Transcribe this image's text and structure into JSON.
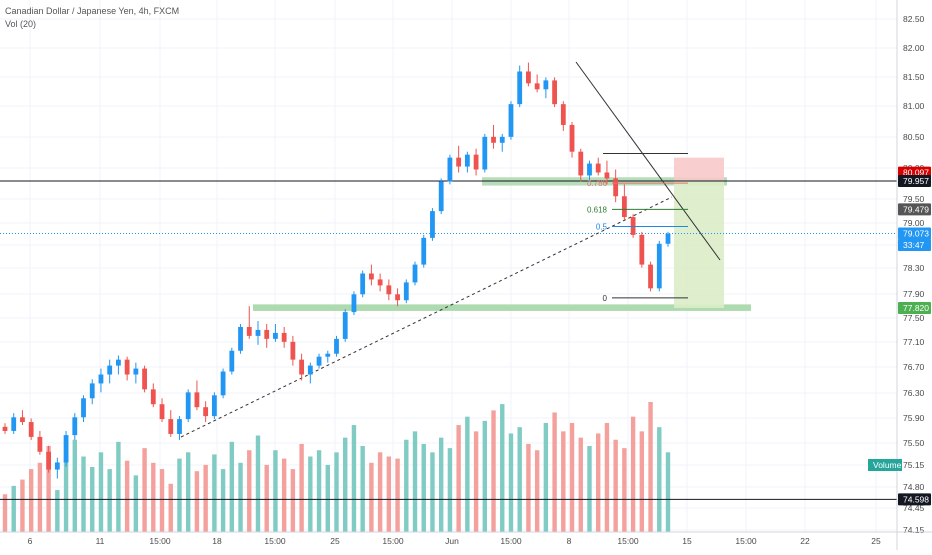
{
  "header": {
    "title": "Canadian Dollar / Japanese Yen, 4h, FXCM",
    "volume_label": "Vol (20)"
  },
  "chart_data": {
    "type": "candlestick",
    "title": "Canadian Dollar / Japanese Yen, 4h, FXCM",
    "ylim": [
      74.1,
      82.7
    ],
    "y_ticks": [
      "82.50",
      "82.00",
      "81.50",
      "81.00",
      "80.50",
      "80.00",
      "79.50",
      "79.00",
      "78.70",
      "78.30",
      "77.90",
      "77.50",
      "77.10",
      "76.70",
      "76.30",
      "75.90",
      "75.50",
      "75.15",
      "74.80",
      "74.45",
      "74.15"
    ],
    "x_ticks": [
      "6",
      "11",
      "15:00",
      "18",
      "15:00",
      "25",
      "15:00",
      "Jun",
      "15:00",
      "8",
      "15:00",
      "15",
      "15:00",
      "22",
      "25"
    ],
    "candles_ohlc": [
      [
        75.82,
        75.88,
        75.7,
        75.75
      ],
      [
        75.75,
        76.05,
        75.7,
        75.98
      ],
      [
        75.98,
        76.1,
        75.85,
        75.9
      ],
      [
        75.9,
        75.96,
        75.6,
        75.65
      ],
      [
        75.65,
        75.75,
        75.35,
        75.4
      ],
      [
        75.4,
        75.5,
        75.05,
        75.1
      ],
      [
        75.1,
        75.3,
        74.95,
        75.22
      ],
      [
        75.22,
        75.75,
        75.15,
        75.68
      ],
      [
        75.68,
        76.05,
        75.6,
        75.98
      ],
      [
        75.98,
        76.35,
        75.9,
        76.3
      ],
      [
        76.3,
        76.62,
        76.2,
        76.55
      ],
      [
        76.55,
        76.8,
        76.4,
        76.7
      ],
      [
        76.7,
        76.95,
        76.55,
        76.85
      ],
      [
        76.85,
        77.02,
        76.7,
        76.95
      ],
      [
        76.95,
        77.0,
        76.6,
        76.7
      ],
      [
        76.7,
        76.9,
        76.55,
        76.8
      ],
      [
        76.8,
        76.85,
        76.4,
        76.45
      ],
      [
        76.45,
        76.55,
        76.15,
        76.2
      ],
      [
        76.2,
        76.3,
        75.9,
        75.95
      ],
      [
        75.95,
        76.1,
        75.65,
        75.7
      ],
      [
        75.7,
        76.0,
        75.6,
        75.95
      ],
      [
        75.95,
        76.45,
        75.9,
        76.4
      ],
      [
        76.4,
        76.6,
        76.1,
        76.15
      ],
      [
        76.15,
        76.25,
        75.9,
        76.0
      ],
      [
        76.0,
        76.4,
        75.95,
        76.35
      ],
      [
        76.35,
        76.8,
        76.3,
        76.75
      ],
      [
        76.75,
        77.15,
        76.7,
        77.1
      ],
      [
        77.1,
        77.55,
        77.05,
        77.5
      ],
      [
        77.5,
        77.85,
        77.3,
        77.35
      ],
      [
        77.35,
        77.6,
        77.2,
        77.45
      ],
      [
        77.45,
        77.55,
        77.15,
        77.3
      ],
      [
        77.3,
        77.55,
        77.25,
        77.4
      ],
      [
        77.4,
        77.5,
        77.15,
        77.25
      ],
      [
        77.25,
        77.35,
        76.85,
        76.95
      ],
      [
        76.95,
        77.05,
        76.6,
        76.7
      ],
      [
        76.7,
        76.9,
        76.55,
        76.85
      ],
      [
        76.85,
        77.05,
        76.8,
        77.0
      ],
      [
        77.0,
        77.1,
        76.9,
        77.05
      ],
      [
        77.05,
        77.35,
        77.0,
        77.3
      ],
      [
        77.3,
        77.8,
        77.25,
        77.75
      ],
      [
        77.75,
        78.1,
        77.7,
        78.05
      ],
      [
        78.05,
        78.45,
        78.0,
        78.4
      ],
      [
        78.4,
        78.55,
        78.2,
        78.3
      ],
      [
        78.3,
        78.4,
        78.1,
        78.2
      ],
      [
        78.2,
        78.3,
        77.95,
        78.05
      ],
      [
        78.05,
        78.15,
        77.85,
        77.95
      ],
      [
        77.95,
        78.3,
        77.9,
        78.25
      ],
      [
        78.25,
        78.6,
        78.2,
        78.55
      ],
      [
        78.55,
        79.05,
        78.5,
        79.0
      ],
      [
        79.0,
        79.5,
        78.95,
        79.45
      ],
      [
        79.45,
        80.0,
        79.4,
        79.95
      ],
      [
        79.95,
        80.4,
        79.9,
        80.35
      ],
      [
        80.35,
        80.55,
        80.1,
        80.2
      ],
      [
        80.2,
        80.45,
        80.1,
        80.4
      ],
      [
        80.4,
        80.5,
        80.05,
        80.15
      ],
      [
        80.15,
        80.75,
        80.1,
        80.7
      ],
      [
        80.7,
        80.9,
        80.5,
        80.6
      ],
      [
        80.6,
        80.75,
        80.45,
        80.7
      ],
      [
        80.7,
        81.3,
        80.65,
        81.25
      ],
      [
        81.25,
        81.9,
        81.2,
        81.8
      ],
      [
        81.8,
        81.95,
        81.55,
        81.6
      ],
      [
        81.6,
        81.75,
        81.45,
        81.5
      ],
      [
        81.5,
        81.7,
        81.35,
        81.65
      ],
      [
        81.65,
        81.7,
        81.2,
        81.25
      ],
      [
        81.25,
        81.3,
        80.8,
        80.9
      ],
      [
        80.9,
        80.95,
        80.35,
        80.45
      ],
      [
        80.45,
        80.5,
        79.95,
        80.05
      ],
      [
        80.05,
        80.3,
        79.95,
        80.25
      ],
      [
        80.25,
        80.35,
        80.05,
        80.1
      ],
      [
        80.1,
        80.3,
        79.9,
        80.0
      ],
      [
        80.0,
        80.15,
        79.6,
        79.7
      ],
      [
        79.7,
        79.9,
        79.3,
        79.35
      ],
      [
        79.35,
        79.4,
        79.0,
        79.05
      ],
      [
        79.05,
        79.1,
        78.5,
        78.55
      ],
      [
        78.55,
        78.6,
        78.1,
        78.15
      ],
      [
        78.15,
        78.95,
        78.1,
        78.9
      ],
      [
        78.9,
        79.1,
        78.85,
        79.07
      ]
    ],
    "volumes": [
      18,
      22,
      25,
      30,
      33,
      41,
      20,
      35,
      44,
      36,
      31,
      38,
      30,
      43,
      34,
      27,
      40,
      33,
      30,
      23,
      35,
      38,
      29,
      32,
      37,
      30,
      43,
      33,
      39,
      46,
      32,
      39,
      35,
      30,
      42,
      36,
      39,
      32,
      38,
      45,
      51,
      41,
      33,
      38,
      36,
      35,
      44,
      48,
      42,
      38,
      45,
      40,
      51,
      55,
      48,
      53,
      58,
      61,
      47,
      50,
      42,
      39,
      52,
      57,
      48,
      52,
      45,
      41,
      47,
      52,
      44,
      40,
      55,
      48,
      62,
      50,
      38
    ],
    "fib_levels": [
      {
        "label": "0.786",
        "value": 79.92
      },
      {
        "label": "0.618",
        "value": 79.48
      },
      {
        "label": "0.5",
        "value": 79.19
      },
      {
        "label": "0",
        "value": 77.99
      }
    ],
    "price_tags": [
      {
        "value": 80.097,
        "label": "80.097",
        "color": "#d50000"
      },
      {
        "value": 79.957,
        "label": "79.957",
        "color": "#131722"
      },
      {
        "value": 79.479,
        "label": "79.479",
        "color": "#555555"
      },
      {
        "value": 79.073,
        "label": "79.073",
        "color": "#2196f3"
      },
      {
        "value": 78.88,
        "label": "33:47",
        "color": "#2196f3"
      },
      {
        "value": 77.82,
        "label": "77.820",
        "color": "#4caf50"
      },
      {
        "value": 74.598,
        "label": "74.598",
        "color": "#131722"
      }
    ],
    "volume_tag": {
      "label": "Volume",
      "color": "#26a69a"
    },
    "horizontal_lines": [
      79.957,
      74.598
    ],
    "current_price": 79.073,
    "colors": {
      "up": "#2196f3",
      "down": "#ef5350",
      "vol_up": "#80cbc4",
      "vol_down": "#f4a09c",
      "support": "#a5d6a7",
      "stop_zone": "#f8c9c9",
      "target_zone": "#dcedc8"
    }
  }
}
